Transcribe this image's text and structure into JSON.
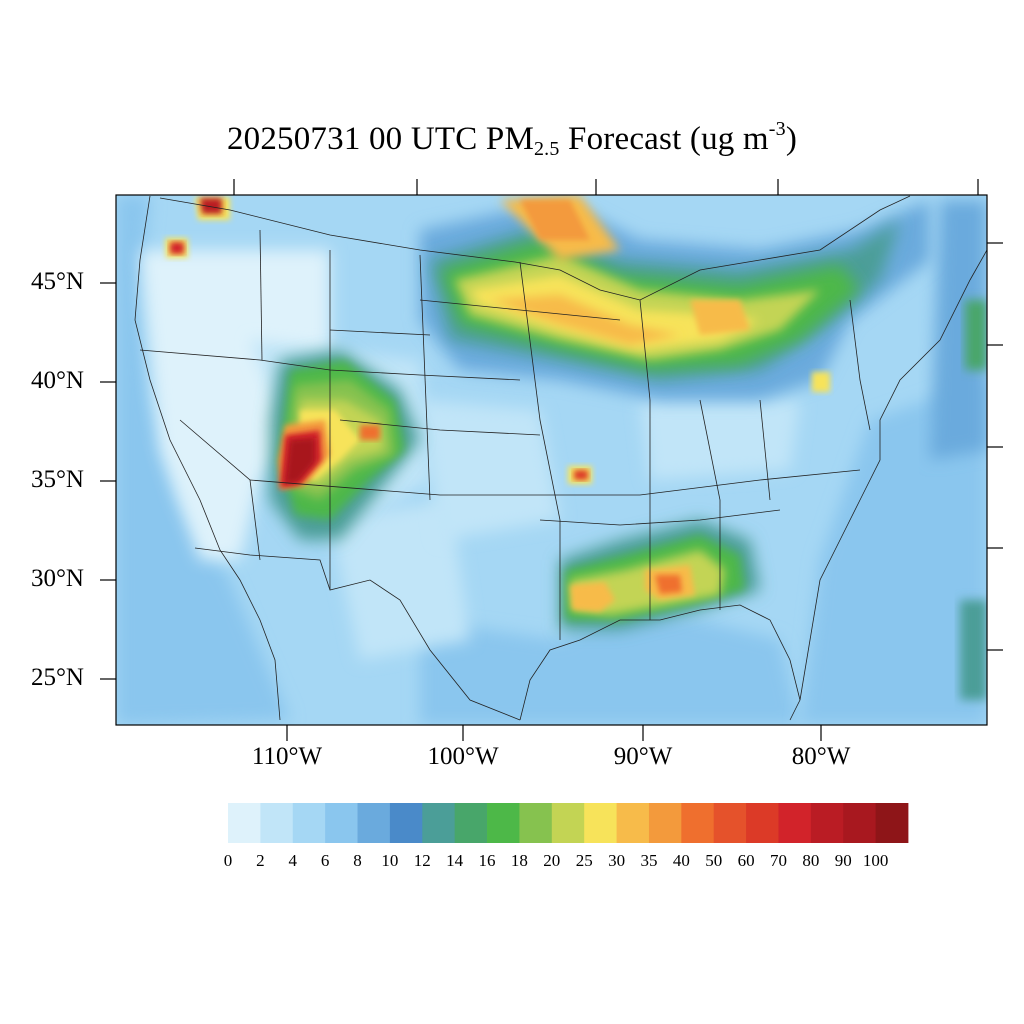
{
  "title": {
    "main": "20250731 00 UTC PM",
    "subscript": "2.5",
    "rest": " Forecast (ug m",
    "superscript": "-3",
    "close": ")"
  },
  "map": {
    "lat_labels": [
      "45°N",
      "40°N",
      "35°N",
      "30°N",
      "25°N"
    ],
    "lon_labels": [
      "110°W",
      "100°W",
      "90°W",
      "80°W"
    ]
  },
  "colorbar": {
    "labels": [
      "0",
      "2",
      "4",
      "6",
      "8",
      "10",
      "12",
      "14",
      "16",
      "18",
      "20",
      "25",
      "30",
      "35",
      "40",
      "50",
      "60",
      "70",
      "80",
      "90",
      "100"
    ],
    "colors": [
      "#def2fb",
      "#c1e5f8",
      "#a5d7f4",
      "#8ac6ee",
      "#6aaadd",
      "#4a8ac9",
      "#4b9e98",
      "#48a66a",
      "#4db848",
      "#86c24f",
      "#c3d454",
      "#f7e35a",
      "#f7bb4a",
      "#f39a3c",
      "#ef6f2e",
      "#e5522b",
      "#dc3a27",
      "#d2232a",
      "#ba1c24",
      "#a8181f",
      "#8e1518"
    ]
  }
}
